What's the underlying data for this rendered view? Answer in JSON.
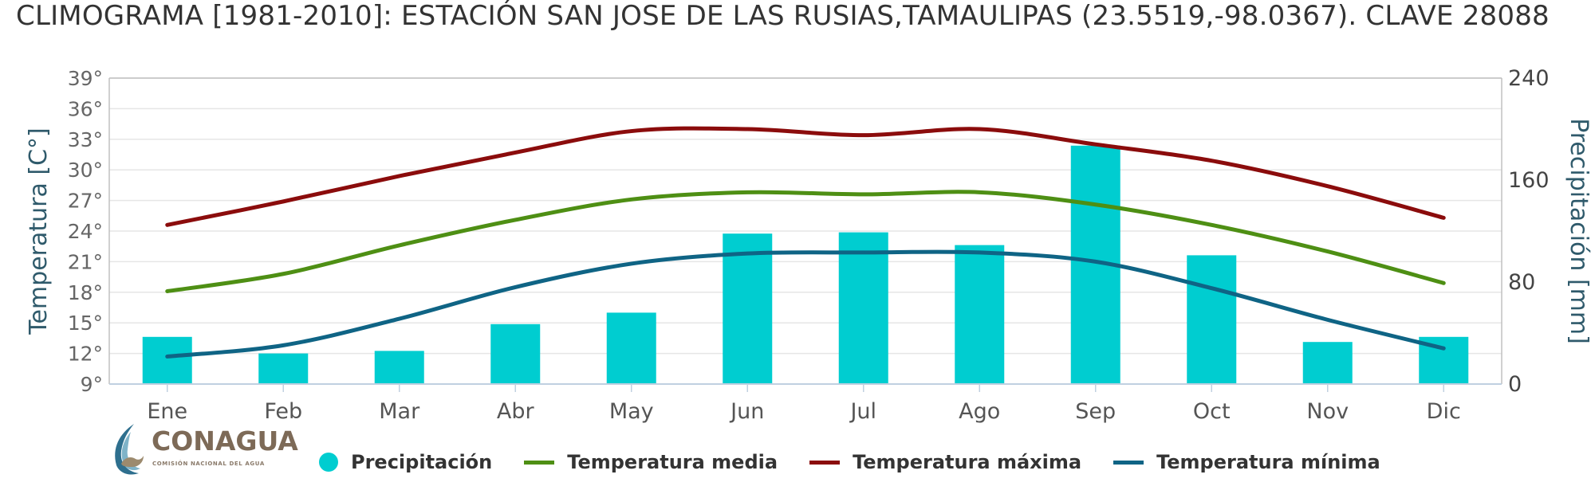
{
  "title": "CLIMOGRAMA [1981-2010]: ESTACIÓN SAN JOSE DE LAS RUSIAS,TAMAULIPAS (23.5519,-98.0367). CLAVE 28088",
  "logo": {
    "name": "CONAGUA",
    "subtitle": "COMISIÓN NACIONAL DEL AGUA",
    "color": "#7d6a57"
  },
  "legend": [
    {
      "name": "Precipitación",
      "color": "#00cdd0",
      "symbol": "dot"
    },
    {
      "name": "Temperatura media",
      "color": "#4e8f14",
      "symbol": "line"
    },
    {
      "name": "Temperatura máxima",
      "color": "#8b0c0c",
      "symbol": "line"
    },
    {
      "name": "Temperatura mínima",
      "color": "#0f6485",
      "symbol": "line"
    }
  ],
  "chart_data": {
    "type": "bar",
    "title": "CLIMOGRAMA [1981-2010]: ESTACIÓN SAN JOSE DE LAS RUSIAS,TAMAULIPAS (23.5519,-98.0367). CLAVE 28088",
    "categories": [
      "Ene",
      "Feb",
      "Mar",
      "Abr",
      "May",
      "Jun",
      "Jul",
      "Ago",
      "Sep",
      "Oct",
      "Nov",
      "Dic"
    ],
    "y_left": {
      "label": "Temperatura [C°]",
      "range": [
        9,
        39
      ],
      "ticks": [
        "39°",
        "36°",
        "33°",
        "30°",
        "27°",
        "24°",
        "21°",
        "18°",
        "15°",
        "12°",
        "9°"
      ]
    },
    "y_right": {
      "label": "Precipitación [mm]",
      "range": [
        0,
        240
      ],
      "ticks": [
        "240",
        "160",
        "80",
        "0"
      ]
    },
    "grid": true,
    "legend_position": "bottom",
    "series": [
      {
        "name": "Precipitación",
        "type": "bar",
        "axis": "right",
        "color": "#00cdd0",
        "values": [
          37,
          24,
          26,
          47,
          56,
          118,
          119,
          109,
          187,
          101,
          33,
          37
        ]
      },
      {
        "name": "Temperatura media",
        "type": "line",
        "axis": "left",
        "color": "#4e8f14",
        "values": [
          18.1,
          19.8,
          22.6,
          25.1,
          27.1,
          27.8,
          27.6,
          27.8,
          26.6,
          24.6,
          22.0,
          18.9
        ]
      },
      {
        "name": "Temperatura máxima",
        "type": "line",
        "axis": "left",
        "color": "#8b0c0c",
        "values": [
          24.6,
          26.9,
          29.4,
          31.7,
          33.8,
          34.0,
          33.4,
          34.0,
          32.5,
          30.9,
          28.4,
          25.3
        ]
      },
      {
        "name": "Temperatura mínima",
        "type": "line",
        "axis": "left",
        "color": "#0f6485",
        "values": [
          11.7,
          12.8,
          15.4,
          18.5,
          20.8,
          21.8,
          21.9,
          21.9,
          21.0,
          18.4,
          15.3,
          12.5
        ]
      }
    ]
  }
}
